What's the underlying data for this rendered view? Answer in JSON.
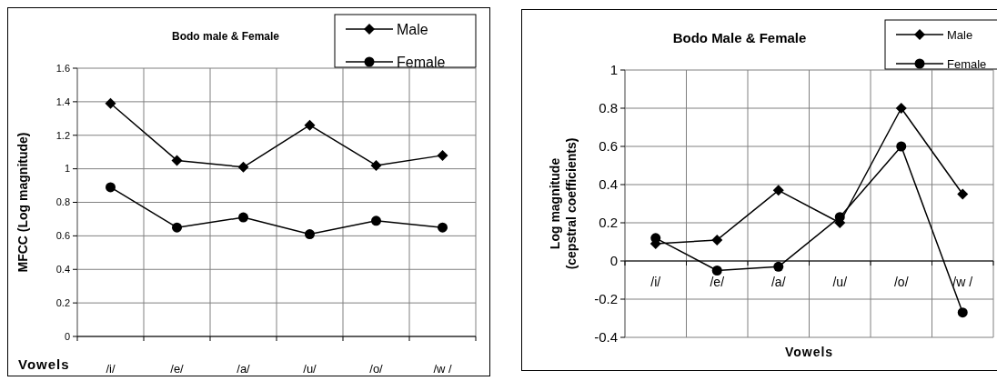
{
  "chart_data": [
    {
      "type": "line",
      "title": "Bodo male & Female",
      "ylabel": "MFCC (Log magnitude)",
      "xlabel": "Vowels",
      "categories": [
        "/i/",
        "/e/",
        "/a/",
        "/u/",
        "/o/",
        "/w /"
      ],
      "ylim": [
        0,
        1.6
      ],
      "yticks": [
        0,
        0.2,
        0.4,
        0.6,
        0.8,
        1,
        1.2,
        1.4,
        1.6
      ],
      "grid": true,
      "legend": "top right",
      "series": [
        {
          "name": "Male",
          "color": "#000000",
          "marker": "diamond",
          "values": [
            1.39,
            1.05,
            1.01,
            1.26,
            1.02,
            1.08
          ]
        },
        {
          "name": "Female",
          "color": "#000000",
          "marker": "circle",
          "values": [
            0.89,
            0.65,
            0.71,
            0.61,
            0.69,
            0.65
          ]
        }
      ]
    },
    {
      "type": "line",
      "title": "Bodo Male & Female",
      "ylabel": "Log magnitude\n(cepstral coefficients)",
      "xlabel": "Vowels",
      "categories": [
        "/i/",
        "/e/",
        "/a/",
        "/u/",
        "/o/",
        "/w /"
      ],
      "ylim": [
        -0.4,
        1
      ],
      "yticks": [
        -0.4,
        -0.2,
        0,
        0.2,
        0.4,
        0.6,
        0.8,
        1
      ],
      "grid": true,
      "legend": "top right",
      "series": [
        {
          "name": "Male",
          "color": "#000000",
          "marker": "diamond",
          "values": [
            0.09,
            0.11,
            0.37,
            0.2,
            0.8,
            0.35
          ]
        },
        {
          "name": "Female",
          "color": "#000000",
          "marker": "circle",
          "values": [
            0.12,
            -0.05,
            -0.03,
            0.23,
            0.6,
            -0.27
          ]
        }
      ]
    }
  ]
}
